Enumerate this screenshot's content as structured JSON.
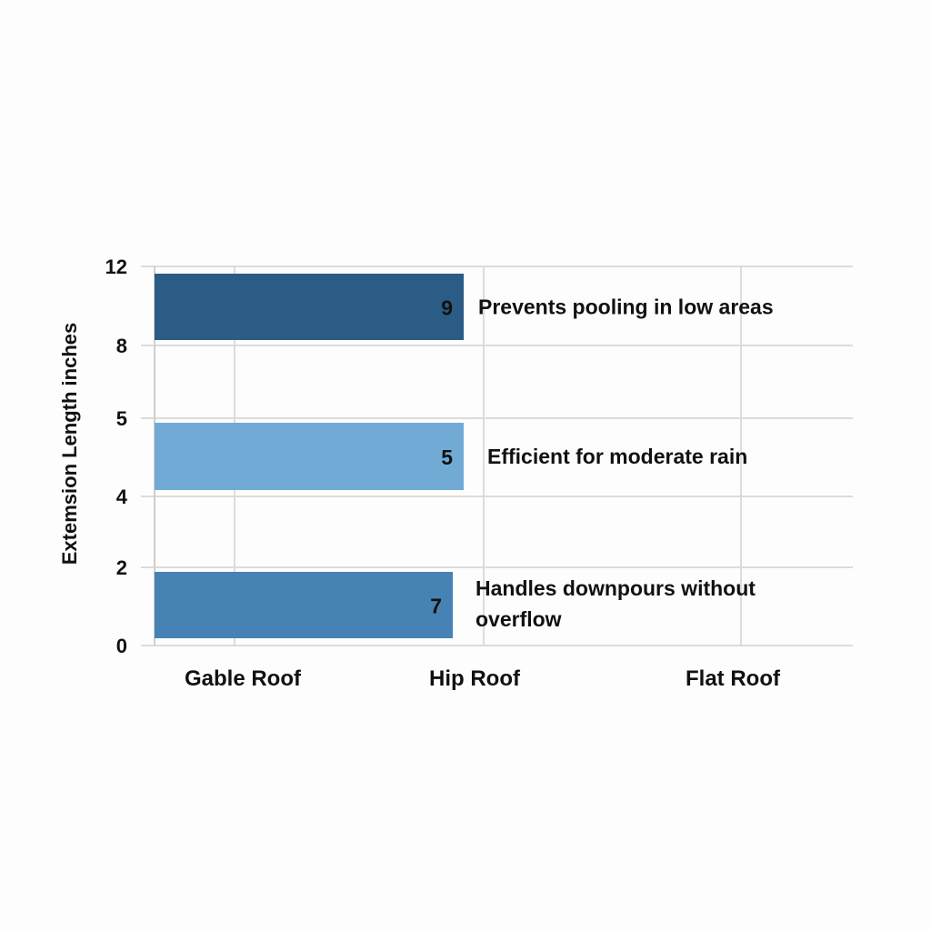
{
  "chart_data": {
    "type": "bar",
    "orientation": "horizontal",
    "title": "",
    "ylabel": "Extemsion Length inches",
    "xlabel": "",
    "y_ticks": [
      "12",
      "8",
      "5",
      "4",
      "2",
      "0"
    ],
    "categories": [
      "Gable Roof",
      "Hip Roof",
      "Flat Roof"
    ],
    "grid": true,
    "bars": [
      {
        "value": 9,
        "label": "9",
        "note": "Prevents pooling in low areas",
        "color": "#2b5c86"
      },
      {
        "value": 5,
        "label": "5",
        "note": "Efficient for moderate rain",
        "color": "#72aad6"
      },
      {
        "value": 7,
        "label": "7",
        "note": [
          "Handles downpours without",
          "overflow"
        ],
        "color": "#4682b4"
      }
    ]
  }
}
